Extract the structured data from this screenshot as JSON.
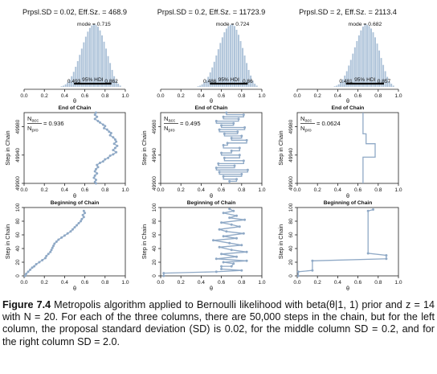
{
  "colors": {
    "bar": "#aec3d9",
    "trace": "#8fa9c6",
    "axis": "#222222",
    "hdi": "#000000"
  },
  "caption": {
    "label": "Figure 7.4",
    "text": "Metropolis algorithm applied to Bernoulli likelihood with beta(θ|1, 1) prior and z = 14 with N = 20. For each of the three columns, there are 50,000 steps in the chain, but for the left column, the proposal standard deviation (SD) is 0.02, for the middle column SD = 0.2, and for the right column SD = 2.0."
  },
  "chart_data": [
    {
      "type": "bar",
      "title": "Prpsl.SD = 0.02, Eff.Sz. = 468.9",
      "mode_label": "mode = 0.715",
      "hdi_label": "95% HDI",
      "hdi": [
        0.493,
        0.862
      ],
      "hdi_tick_labels": [
        "0.493",
        "0.862"
      ],
      "xlabel": "θ",
      "xlim": [
        0,
        1
      ],
      "x_ticks": [
        "0.0",
        "0.2",
        "0.4",
        "0.6",
        "0.8",
        "1.0"
      ],
      "bin_centers": [
        0.37,
        0.39,
        0.41,
        0.43,
        0.45,
        0.47,
        0.49,
        0.51,
        0.53,
        0.55,
        0.57,
        0.59,
        0.61,
        0.63,
        0.65,
        0.67,
        0.69,
        0.71,
        0.73,
        0.75,
        0.77,
        0.79,
        0.81,
        0.83,
        0.85,
        0.87,
        0.89,
        0.91,
        0.93,
        0.95
      ],
      "relative_heights": [
        0.01,
        0.02,
        0.04,
        0.07,
        0.11,
        0.17,
        0.24,
        0.32,
        0.41,
        0.51,
        0.61,
        0.71,
        0.8,
        0.88,
        0.94,
        0.98,
        1.0,
        0.99,
        0.96,
        0.9,
        0.82,
        0.72,
        0.61,
        0.49,
        0.38,
        0.27,
        0.17,
        0.1,
        0.05,
        0.02
      ]
    },
    {
      "type": "bar",
      "title": "Prpsl.SD = 0.2, Eff.Sz. = 11723.9",
      "mode_label": "mode = 0.724",
      "hdi_label": "95% HDI",
      "hdi": [
        0.486,
        0.86
      ],
      "hdi_tick_labels": [
        "0.486",
        "0.86"
      ],
      "xlabel": "θ",
      "xlim": [
        0,
        1
      ],
      "x_ticks": [
        "0.0",
        "0.2",
        "0.4",
        "0.6",
        "0.8",
        "1.0"
      ],
      "bin_centers": [
        0.37,
        0.39,
        0.41,
        0.43,
        0.45,
        0.47,
        0.49,
        0.51,
        0.53,
        0.55,
        0.57,
        0.59,
        0.61,
        0.63,
        0.65,
        0.67,
        0.69,
        0.71,
        0.73,
        0.75,
        0.77,
        0.79,
        0.81,
        0.83,
        0.85,
        0.87,
        0.89,
        0.91,
        0.93,
        0.95
      ],
      "relative_heights": [
        0.01,
        0.02,
        0.04,
        0.07,
        0.11,
        0.16,
        0.23,
        0.31,
        0.4,
        0.5,
        0.6,
        0.7,
        0.79,
        0.87,
        0.93,
        0.97,
        0.99,
        1.0,
        0.97,
        0.91,
        0.83,
        0.73,
        0.62,
        0.5,
        0.38,
        0.27,
        0.18,
        0.1,
        0.05,
        0.02
      ]
    },
    {
      "type": "bar",
      "title": "Prpsl.SD = 2, Eff.Sz. = 2113.4",
      "mode_label": "mode = 0.682",
      "hdi_label": "95% HDI",
      "hdi": [
        0.481,
        0.857
      ],
      "hdi_tick_labels": [
        "0.481",
        "0.857"
      ],
      "xlabel": "θ",
      "xlim": [
        0,
        1
      ],
      "x_ticks": [
        "0.0",
        "0.2",
        "0.4",
        "0.6",
        "0.8",
        "1.0"
      ],
      "bin_centers": [
        0.37,
        0.39,
        0.41,
        0.43,
        0.45,
        0.47,
        0.49,
        0.51,
        0.53,
        0.55,
        0.57,
        0.59,
        0.61,
        0.63,
        0.65,
        0.67,
        0.69,
        0.71,
        0.73,
        0.75,
        0.77,
        0.79,
        0.81,
        0.83,
        0.85,
        0.87,
        0.89,
        0.91,
        0.93,
        0.95
      ],
      "relative_heights": [
        0.01,
        0.02,
        0.04,
        0.08,
        0.12,
        0.18,
        0.25,
        0.34,
        0.43,
        0.53,
        0.63,
        0.73,
        0.82,
        0.9,
        0.96,
        1.0,
        0.99,
        0.97,
        0.93,
        0.87,
        0.79,
        0.69,
        0.58,
        0.46,
        0.35,
        0.25,
        0.16,
        0.09,
        0.05,
        0.02
      ]
    },
    {
      "type": "line",
      "title": "End of Chain",
      "xlabel": "θ",
      "ylabel": "Step in Chain",
      "xlim": [
        0,
        1
      ],
      "ylim": [
        49900,
        50000
      ],
      "x_ticks": [
        "0.0",
        "0.2",
        "0.4",
        "0.6",
        "0.8",
        "1.0"
      ],
      "y_ticks": [
        49900,
        49940,
        49980
      ],
      "annotation": {
        "top": "N",
        "top_sub": "acc",
        "bottom": "N",
        "bottom_sub": "pro",
        "value": "= 0.936"
      },
      "points": [
        [
          0.71,
          50000
        ],
        [
          0.7,
          49997
        ],
        [
          0.72,
          49994
        ],
        [
          0.7,
          49991
        ],
        [
          0.73,
          49988
        ],
        [
          0.75,
          49986
        ],
        [
          0.78,
          49983
        ],
        [
          0.8,
          49981
        ],
        [
          0.79,
          49978
        ],
        [
          0.82,
          49976
        ],
        [
          0.84,
          49973
        ],
        [
          0.86,
          49971
        ],
        [
          0.85,
          49968
        ],
        [
          0.88,
          49965
        ],
        [
          0.9,
          49962
        ],
        [
          0.91,
          49959
        ],
        [
          0.89,
          49956
        ],
        [
          0.92,
          49953
        ],
        [
          0.9,
          49950
        ],
        [
          0.88,
          49947
        ],
        [
          0.91,
          49944
        ],
        [
          0.88,
          49941
        ],
        [
          0.85,
          49939
        ],
        [
          0.83,
          49936
        ],
        [
          0.8,
          49934
        ],
        [
          0.78,
          49931
        ],
        [
          0.75,
          49929
        ],
        [
          0.72,
          49926
        ],
        [
          0.73,
          49923
        ],
        [
          0.71,
          49920
        ],
        [
          0.7,
          49917
        ],
        [
          0.72,
          49914
        ],
        [
          0.7,
          49911
        ],
        [
          0.69,
          49908
        ],
        [
          0.71,
          49905
        ],
        [
          0.7,
          49902
        ],
        [
          0.71,
          49900
        ]
      ]
    },
    {
      "type": "line",
      "title": "End of Chain",
      "xlabel": "θ",
      "ylabel": "Step in Chain",
      "xlim": [
        0,
        1
      ],
      "ylim": [
        49900,
        50000
      ],
      "x_ticks": [
        "0.0",
        "0.2",
        "0.4",
        "0.6",
        "0.8",
        "1.0"
      ],
      "y_ticks": [
        49900,
        49940,
        49980
      ],
      "annotation": {
        "top": "N",
        "top_sub": "acc",
        "bottom": "N",
        "bottom_sub": "pro",
        "value": "= 0.495"
      },
      "points": [
        [
          0.65,
          50000
        ],
        [
          0.65,
          49997
        ],
        [
          0.82,
          49997
        ],
        [
          0.82,
          49994
        ],
        [
          0.62,
          49994
        ],
        [
          0.62,
          49991
        ],
        [
          0.77,
          49991
        ],
        [
          0.77,
          49988
        ],
        [
          0.55,
          49988
        ],
        [
          0.55,
          49985
        ],
        [
          0.72,
          49985
        ],
        [
          0.72,
          49982
        ],
        [
          0.6,
          49982
        ],
        [
          0.6,
          49979
        ],
        [
          0.83,
          49979
        ],
        [
          0.83,
          49976
        ],
        [
          0.58,
          49976
        ],
        [
          0.58,
          49973
        ],
        [
          0.76,
          49973
        ],
        [
          0.76,
          49970
        ],
        [
          0.63,
          49970
        ],
        [
          0.63,
          49967
        ],
        [
          0.8,
          49967
        ],
        [
          0.8,
          49964
        ],
        [
          0.7,
          49964
        ],
        [
          0.7,
          49961
        ],
        [
          0.85,
          49961
        ],
        [
          0.85,
          49957
        ],
        [
          0.66,
          49957
        ],
        [
          0.66,
          49954
        ],
        [
          0.62,
          49954
        ],
        [
          0.62,
          49950
        ],
        [
          0.78,
          49950
        ],
        [
          0.78,
          49946
        ],
        [
          0.7,
          49946
        ],
        [
          0.7,
          49943
        ],
        [
          0.6,
          49943
        ],
        [
          0.6,
          49940
        ],
        [
          0.78,
          49940
        ],
        [
          0.78,
          49936
        ],
        [
          0.63,
          49936
        ],
        [
          0.63,
          49932
        ],
        [
          0.82,
          49932
        ],
        [
          0.82,
          49928
        ],
        [
          0.57,
          49928
        ],
        [
          0.57,
          49925
        ],
        [
          0.73,
          49925
        ],
        [
          0.73,
          49922
        ],
        [
          0.55,
          49922
        ],
        [
          0.55,
          49919
        ],
        [
          0.86,
          49919
        ],
        [
          0.86,
          49916
        ],
        [
          0.58,
          49916
        ],
        [
          0.58,
          49913
        ],
        [
          0.8,
          49913
        ],
        [
          0.8,
          49910
        ],
        [
          0.62,
          49910
        ],
        [
          0.62,
          49906
        ],
        [
          0.75,
          49906
        ],
        [
          0.75,
          49903
        ],
        [
          0.68,
          49903
        ],
        [
          0.68,
          49900
        ]
      ]
    },
    {
      "type": "line",
      "title": "End of Chain",
      "xlabel": "θ",
      "ylabel": "Step in Chain",
      "xlim": [
        0,
        1
      ],
      "ylim": [
        49900,
        50000
      ],
      "x_ticks": [
        "0.0",
        "0.2",
        "0.4",
        "0.6",
        "0.8",
        "1.0"
      ],
      "y_ticks": [
        49900,
        49940,
        49980
      ],
      "annotation": {
        "top": "N",
        "top_sub": "acc",
        "bottom": "N",
        "bottom_sub": "pro",
        "value": "= 0.0624"
      },
      "points": [
        [
          0.65,
          50000
        ],
        [
          0.65,
          49970
        ],
        [
          0.68,
          49970
        ],
        [
          0.68,
          49956
        ],
        [
          0.77,
          49956
        ],
        [
          0.77,
          49937
        ],
        [
          0.65,
          49937
        ],
        [
          0.65,
          49900
        ]
      ]
    },
    {
      "type": "line",
      "title": "Beginning of Chain",
      "xlabel": "θ",
      "ylabel": "Step in Chain",
      "xlim": [
        0,
        1
      ],
      "ylim": [
        0,
        100
      ],
      "x_ticks": [
        "0.0",
        "0.2",
        "0.4",
        "0.6",
        "0.8",
        "1.0"
      ],
      "y_ticks": [
        0,
        20,
        40,
        60,
        80,
        100
      ],
      "points": [
        [
          0.01,
          0
        ],
        [
          0.02,
          3
        ],
        [
          0.04,
          6
        ],
        [
          0.06,
          9
        ],
        [
          0.08,
          12
        ],
        [
          0.1,
          14
        ],
        [
          0.12,
          17
        ],
        [
          0.15,
          20
        ],
        [
          0.18,
          23
        ],
        [
          0.21,
          26
        ],
        [
          0.22,
          29
        ],
        [
          0.24,
          32
        ],
        [
          0.26,
          35
        ],
        [
          0.27,
          38
        ],
        [
          0.28,
          41
        ],
        [
          0.29,
          44
        ],
        [
          0.3,
          47
        ],
        [
          0.32,
          50
        ],
        [
          0.34,
          53
        ],
        [
          0.37,
          56
        ],
        [
          0.4,
          59
        ],
        [
          0.43,
          62
        ],
        [
          0.46,
          65
        ],
        [
          0.48,
          68
        ],
        [
          0.5,
          71
        ],
        [
          0.52,
          74
        ],
        [
          0.54,
          77
        ],
        [
          0.56,
          80
        ],
        [
          0.57,
          83
        ],
        [
          0.59,
          86
        ],
        [
          0.58,
          89
        ],
        [
          0.6,
          92
        ],
        [
          0.59,
          95
        ]
      ]
    },
    {
      "type": "line",
      "title": "Beginning of Chain",
      "xlabel": "θ",
      "ylabel": "Step in Chain",
      "xlim": [
        0,
        1
      ],
      "ylim": [
        0,
        100
      ],
      "x_ticks": [
        "0.0",
        "0.2",
        "0.4",
        "0.6",
        "0.8",
        "1.0"
      ],
      "y_ticks": [
        0,
        20,
        40,
        60,
        80,
        100
      ],
      "points": [
        [
          0.03,
          0
        ],
        [
          0.03,
          4
        ],
        [
          0.55,
          6
        ],
        [
          0.8,
          8
        ],
        [
          0.6,
          10
        ],
        [
          0.6,
          14
        ],
        [
          0.7,
          14
        ],
        [
          0.72,
          18
        ],
        [
          0.62,
          20
        ],
        [
          0.85,
          22
        ],
        [
          0.55,
          25
        ],
        [
          0.75,
          28
        ],
        [
          0.6,
          32
        ],
        [
          0.85,
          35
        ],
        [
          0.7,
          38
        ],
        [
          0.58,
          42
        ],
        [
          0.8,
          45
        ],
        [
          0.68,
          48
        ],
        [
          0.52,
          52
        ],
        [
          0.75,
          55
        ],
        [
          0.62,
          58
        ],
        [
          0.82,
          62
        ],
        [
          0.65,
          65
        ],
        [
          0.58,
          68
        ],
        [
          0.78,
          72
        ],
        [
          0.7,
          75
        ],
        [
          0.6,
          78
        ],
        [
          0.83,
          82
        ],
        [
          0.68,
          85
        ],
        [
          0.75,
          88
        ],
        [
          0.62,
          92
        ],
        [
          0.72,
          95
        ],
        [
          0.68,
          98
        ]
      ]
    },
    {
      "type": "line",
      "title": "Beginning of Chain",
      "xlabel": "θ",
      "ylabel": "Step in Chain",
      "xlim": [
        0,
        1
      ],
      "ylim": [
        0,
        100
      ],
      "x_ticks": [
        "0.0",
        "0.2",
        "0.4",
        "0.6",
        "0.8",
        "1.0"
      ],
      "y_ticks": [
        0,
        20,
        40,
        60,
        80,
        100
      ],
      "points": [
        [
          0.01,
          0
        ],
        [
          0.01,
          6
        ],
        [
          0.15,
          8
        ],
        [
          0.15,
          22
        ],
        [
          0.88,
          25
        ],
        [
          0.88,
          30
        ],
        [
          0.7,
          33
        ],
        [
          0.7,
          95
        ],
        [
          0.75,
          97
        ]
      ]
    }
  ]
}
